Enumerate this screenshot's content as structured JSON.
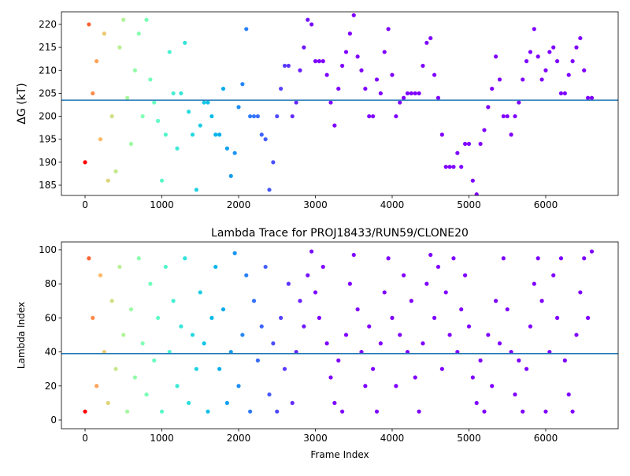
{
  "chart_data": [
    {
      "type": "scatter",
      "ylabel": "ΔG (kT)",
      "colormap": "rainbow_r",
      "hline": 203.5,
      "hline_color": "#1f77b4",
      "xlim": [
        -308,
        6944
      ],
      "xticks": [
        0,
        1000,
        2000,
        3000,
        4000,
        5000,
        6000
      ],
      "ylim": [
        182.77,
        222.74
      ],
      "yticks": [
        185,
        190,
        195,
        200,
        205,
        210,
        215,
        220
      ],
      "x": [
        0,
        50,
        100,
        150,
        200,
        250,
        300,
        350,
        400,
        450,
        500,
        550,
        600,
        650,
        700,
        750,
        800,
        850,
        900,
        950,
        1000,
        1050,
        1100,
        1150,
        1200,
        1250,
        1300,
        1350,
        1400,
        1450,
        1500,
        1550,
        1600,
        1650,
        1700,
        1750,
        1800,
        1850,
        1900,
        1950,
        2000,
        2050,
        2100,
        2150,
        2200,
        2250,
        2300,
        2350,
        2400,
        2450,
        2500,
        2550,
        2600,
        2650,
        2700,
        2750,
        2800,
        2850,
        2900,
        2950,
        3000,
        3050,
        3100,
        3150,
        3200,
        3250,
        3300,
        3350,
        3400,
        3450,
        3500,
        3550,
        3600,
        3650,
        3700,
        3750,
        3800,
        3850,
        3900,
        3950,
        4000,
        4050,
        4100,
        4150,
        4200,
        4250,
        4300,
        4350,
        4400,
        4450,
        4500,
        4550,
        4600,
        4650,
        4700,
        4750,
        4800,
        4850,
        4900,
        4950,
        5000,
        5050,
        5100,
        5150,
        5200,
        5250,
        5300,
        5350,
        5400,
        5450,
        5500,
        5550,
        5600,
        5650,
        5700,
        5750,
        5800,
        5850,
        5900,
        5950,
        6000,
        6050,
        6100,
        6150,
        6200,
        6250,
        6300,
        6350,
        6400,
        6450,
        6500,
        6550,
        6600
      ],
      "values": [
        190,
        220,
        205,
        212,
        195,
        218,
        186,
        200,
        188,
        215,
        221,
        204,
        194,
        210,
        218,
        200,
        221,
        208,
        203,
        199,
        186,
        196,
        214,
        205,
        193,
        205,
        216,
        201,
        196,
        184,
        198,
        203,
        203,
        200,
        196,
        196,
        206,
        193,
        187,
        192,
        202,
        207,
        219,
        200,
        200,
        200,
        196,
        195,
        184,
        190,
        200,
        206,
        211,
        211,
        200,
        203,
        210,
        215,
        221,
        220,
        212,
        212,
        212,
        209,
        203,
        198,
        206,
        211,
        214,
        218,
        222,
        213,
        210,
        206,
        200,
        200,
        208,
        205,
        214,
        219,
        209,
        200,
        203,
        204,
        205,
        205,
        205,
        205,
        211,
        216,
        217,
        209,
        204,
        196,
        189,
        189,
        189,
        192,
        189,
        194,
        194,
        186,
        183,
        194,
        197,
        202,
        206,
        213,
        208,
        200,
        200,
        196,
        200,
        203,
        208,
        212,
        214,
        219,
        213,
        208,
        210,
        214,
        215,
        212,
        205,
        205,
        209,
        212,
        215,
        217,
        210,
        204,
        204
      ]
    },
    {
      "type": "scatter",
      "title": "Lambda Trace for PROJ18433/RUN59/CLONE20",
      "xlabel": "Frame Index",
      "ylabel": "Lambda Index",
      "colormap": "rainbow_r",
      "hline": 39,
      "hline_color": "#1f77b4",
      "xlim": [
        -308,
        6944
      ],
      "xticks": [
        0,
        1000,
        2000,
        3000,
        4000,
        5000,
        6000
      ],
      "ylim": [
        -5.1,
        104.6
      ],
      "yticks": [
        0,
        20,
        40,
        60,
        80,
        100
      ],
      "x": [
        0,
        50,
        100,
        150,
        200,
        250,
        300,
        350,
        400,
        450,
        500,
        550,
        600,
        650,
        700,
        750,
        800,
        850,
        900,
        950,
        1000,
        1050,
        1100,
        1150,
        1200,
        1250,
        1300,
        1350,
        1400,
        1450,
        1500,
        1550,
        1600,
        1650,
        1700,
        1750,
        1800,
        1850,
        1900,
        1950,
        2000,
        2050,
        2100,
        2150,
        2200,
        2250,
        2300,
        2350,
        2400,
        2450,
        2500,
        2550,
        2600,
        2650,
        2700,
        2750,
        2800,
        2850,
        2900,
        2950,
        3000,
        3050,
        3100,
        3150,
        3200,
        3250,
        3300,
        3350,
        3400,
        3450,
        3500,
        3550,
        3600,
        3650,
        3700,
        3750,
        3800,
        3850,
        3900,
        3950,
        4000,
        4050,
        4100,
        4150,
        4200,
        4250,
        4300,
        4350,
        4400,
        4450,
        4500,
        4550,
        4600,
        4650,
        4700,
        4750,
        4800,
        4850,
        4900,
        4950,
        5000,
        5050,
        5100,
        5150,
        5200,
        5250,
        5300,
        5350,
        5400,
        5450,
        5500,
        5550,
        5600,
        5650,
        5700,
        5750,
        5800,
        5850,
        5900,
        5950,
        6000,
        6050,
        6100,
        6150,
        6200,
        6250,
        6300,
        6350,
        6400,
        6450,
        6500,
        6550,
        6600
      ],
      "values": [
        5,
        95,
        60,
        20,
        85,
        40,
        10,
        70,
        30,
        90,
        50,
        5,
        65,
        25,
        95,
        45,
        15,
        80,
        35,
        60,
        5,
        90,
        40,
        70,
        20,
        55,
        95,
        10,
        50,
        30,
        75,
        45,
        5,
        60,
        90,
        30,
        65,
        10,
        40,
        98,
        20,
        50,
        85,
        5,
        70,
        35,
        55,
        90,
        15,
        45,
        5,
        60,
        30,
        80,
        10,
        40,
        70,
        55,
        85,
        99,
        75,
        60,
        90,
        45,
        25,
        10,
        35,
        5,
        50,
        80,
        97,
        65,
        40,
        20,
        55,
        30,
        5,
        45,
        75,
        95,
        60,
        20,
        50,
        85,
        40,
        70,
        25,
        5,
        45,
        80,
        97,
        60,
        90,
        30,
        75,
        50,
        95,
        40,
        65,
        85,
        55,
        25,
        10,
        35,
        5,
        50,
        20,
        70,
        45,
        95,
        65,
        40,
        15,
        35,
        5,
        30,
        55,
        80,
        95,
        70,
        5,
        40,
        85,
        60,
        95,
        35,
        15,
        5,
        50,
        75,
        95,
        60,
        99
      ]
    }
  ]
}
